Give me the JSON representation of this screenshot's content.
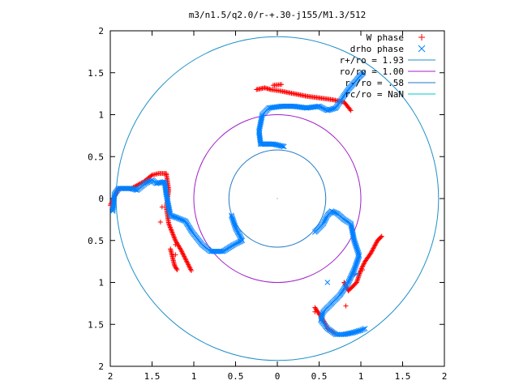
{
  "chart_data": {
    "type": "scatter",
    "title": "m3/n1.5/q2.0/r-+.30-j155/M1.3/512",
    "xlim": [
      -2,
      2
    ],
    "ylim": [
      -2,
      2
    ],
    "x_ticks": [
      "2",
      "1.5",
      "1",
      "0.5",
      "0",
      "0.5",
      "1",
      "1.5",
      "2"
    ],
    "y_ticks": [
      "2",
      "1.5",
      "1",
      "0.5",
      "0",
      "0.5",
      "1",
      "1.5",
      "2"
    ],
    "grid": false,
    "legend_position": "top-right",
    "legend": [
      {
        "label": "W phase",
        "marker": "+",
        "color": "#ff0000"
      },
      {
        "label": "drho phase",
        "marker": "x",
        "color": "#0080ff"
      },
      {
        "label": "r+/ro = 1.93",
        "marker": "line",
        "color": "#1e90c8"
      },
      {
        "label": "ro/ro = 1.00",
        "marker": "line",
        "color": "#a020c8"
      },
      {
        "label": "r-/ro = .58",
        "marker": "line",
        "color": "#1e78c8"
      },
      {
        "label": "rc/ro = NaN",
        "marker": "line",
        "color": "#00c8c8"
      }
    ],
    "circles": [
      {
        "name": "r+/ro",
        "r": 1.93,
        "color": "#1e90c8"
      },
      {
        "name": "ro/ro",
        "r": 1.0,
        "color": "#a020c8"
      },
      {
        "name": "r-/ro",
        "r": 0.58,
        "color": "#1e78c8"
      }
    ],
    "series": [
      {
        "name": "W phase",
        "color": "#ff0000",
        "paths": [
          [
            [
              -2.0,
              -0.08
            ],
            [
              -1.9,
              0.12
            ],
            [
              -1.75,
              0.12
            ],
            [
              -1.6,
              0.2
            ],
            [
              -1.5,
              0.28
            ],
            [
              -1.42,
              0.3
            ],
            [
              -1.33,
              0.3
            ],
            [
              -1.3,
              0.1
            ],
            [
              -1.33,
              -0.1
            ],
            [
              -1.3,
              -0.3
            ],
            [
              -1.22,
              -0.5
            ],
            [
              -1.15,
              -0.62
            ],
            [
              -1.08,
              -0.76
            ],
            [
              -1.03,
              -0.86
            ]
          ],
          [
            [
              -1.28,
              -0.6
            ],
            [
              -1.23,
              -0.8
            ],
            [
              -1.2,
              -0.85
            ]
          ],
          [
            [
              -0.25,
              1.3
            ],
            [
              -0.15,
              1.32
            ],
            [
              -0.08,
              1.3
            ],
            [
              0.05,
              1.28
            ],
            [
              0.2,
              1.25
            ],
            [
              0.35,
              1.22
            ],
            [
              0.5,
              1.2
            ],
            [
              0.65,
              1.18
            ],
            [
              0.8,
              1.15
            ],
            [
              0.88,
              1.05
            ]
          ],
          [
            [
              -0.05,
              1.35
            ],
            [
              0.05,
              1.36
            ]
          ],
          [
            [
              0.8,
              -1.0
            ],
            [
              0.85,
              -1.1
            ],
            [
              0.95,
              -1.0
            ],
            [
              1.0,
              -0.85
            ],
            [
              1.05,
              -0.75
            ],
            [
              1.12,
              -0.65
            ],
            [
              1.2,
              -0.5
            ],
            [
              1.25,
              -0.45
            ]
          ],
          [
            [
              0.45,
              -1.3
            ],
            [
              0.55,
              -1.45
            ],
            [
              0.6,
              -1.55
            ],
            [
              0.68,
              -1.6
            ]
          ]
        ],
        "points": [
          [
            -1.4,
            -0.28
          ],
          [
            -1.38,
            -0.1
          ],
          [
            -1.22,
            -0.55
          ],
          [
            -1.22,
            -0.67
          ],
          [
            0.92,
            -0.9
          ],
          [
            1.02,
            -0.85
          ],
          [
            0.8,
            -1.0
          ],
          [
            0.82,
            -1.28
          ],
          [
            0.45,
            -1.35
          ],
          [
            0.6,
            -1.55
          ]
        ]
      },
      {
        "name": "drho phase",
        "color": "#0080ff",
        "paths": [
          [
            [
              -1.97,
              -0.15
            ],
            [
              -1.95,
              0.05
            ],
            [
              -1.9,
              0.12
            ],
            [
              -1.75,
              0.12
            ],
            [
              -1.68,
              0.1
            ],
            [
              -1.58,
              0.18
            ],
            [
              -1.5,
              0.22
            ],
            [
              -1.45,
              0.18
            ],
            [
              -1.35,
              0.2
            ],
            [
              -1.33,
              0.05
            ],
            [
              -1.28,
              -0.2
            ],
            [
              -1.2,
              -0.23
            ],
            [
              -1.1,
              -0.27
            ],
            [
              -1.02,
              -0.4
            ],
            [
              -0.9,
              -0.55
            ],
            [
              -0.8,
              -0.63
            ],
            [
              -0.65,
              -0.63
            ],
            [
              -0.52,
              -0.55
            ],
            [
              -0.42,
              -0.5
            ],
            [
              -0.5,
              -0.35
            ],
            [
              -0.55,
              -0.2
            ]
          ],
          [
            [
              -0.2,
              0.65
            ],
            [
              -0.22,
              0.8
            ],
            [
              -0.18,
              1.0
            ],
            [
              -0.1,
              1.08
            ],
            [
              0.05,
              1.1
            ],
            [
              0.2,
              1.1
            ],
            [
              0.35,
              1.08
            ],
            [
              0.5,
              1.1
            ],
            [
              0.6,
              1.05
            ],
            [
              0.7,
              1.08
            ],
            [
              0.78,
              1.2
            ],
            [
              0.85,
              1.3
            ],
            [
              0.92,
              1.38
            ],
            [
              0.98,
              1.45
            ],
            [
              1.03,
              1.5
            ]
          ],
          [
            [
              -0.2,
              0.65
            ],
            [
              -0.05,
              0.65
            ],
            [
              0.08,
              0.62
            ]
          ],
          [
            [
              0.45,
              -0.4
            ],
            [
              0.55,
              -0.3
            ],
            [
              0.6,
              -0.2
            ],
            [
              0.65,
              -0.15
            ],
            [
              0.72,
              -0.18
            ],
            [
              0.8,
              -0.25
            ],
            [
              0.88,
              -0.3
            ],
            [
              0.92,
              -0.5
            ],
            [
              0.98,
              -0.68
            ],
            [
              0.92,
              -0.85
            ],
            [
              0.85,
              -1.0
            ],
            [
              0.75,
              -1.15
            ],
            [
              0.65,
              -1.25
            ],
            [
              0.55,
              -1.35
            ],
            [
              0.52,
              -1.45
            ],
            [
              0.6,
              -1.55
            ],
            [
              0.7,
              -1.62
            ],
            [
              0.8,
              -1.62
            ],
            [
              0.9,
              -1.6
            ],
            [
              1.0,
              -1.57
            ],
            [
              1.05,
              -1.55
            ]
          ]
        ],
        "points": [
          [
            0.6,
            -1.0
          ],
          [
            0.95,
            -0.9
          ]
        ]
      }
    ]
  }
}
